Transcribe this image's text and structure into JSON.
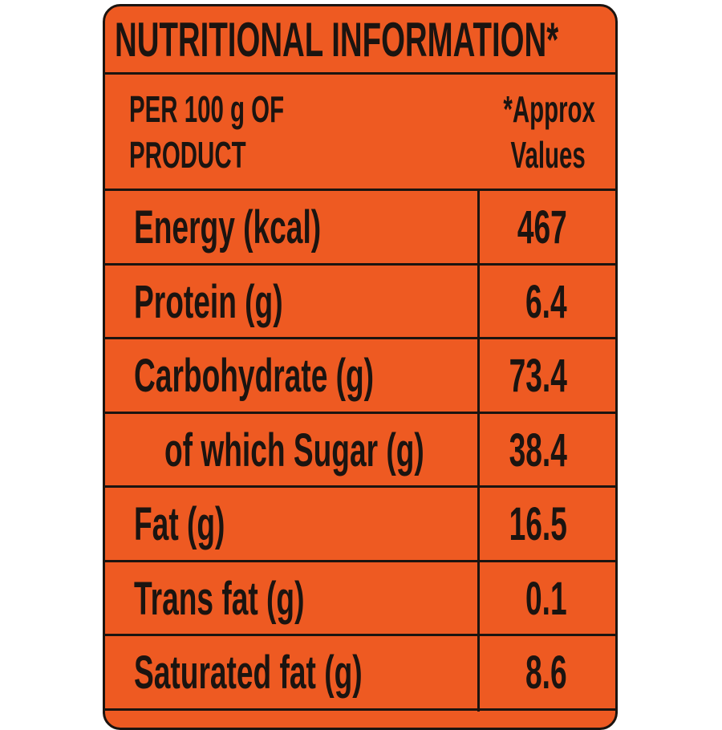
{
  "title": "NUTRITIONAL INFORMATION*",
  "table": {
    "header": [
      [
        "PER 100 g OF",
        "PRODUCT"
      ],
      [
        "*Approx",
        "Values"
      ]
    ],
    "rows": [
      [
        "Energy (kcal)",
        "467"
      ],
      [
        "Protein (g)",
        "6.4"
      ],
      [
        "Carbohydrate (g)",
        "73.4"
      ],
      [
        "of which Sugar (g)",
        "38.4"
      ],
      [
        "Fat (g)",
        "16.5"
      ],
      [
        "Trans fat (g)",
        "0.1"
      ],
      [
        "Saturated fat (g)",
        "8.6"
      ]
    ]
  }
}
